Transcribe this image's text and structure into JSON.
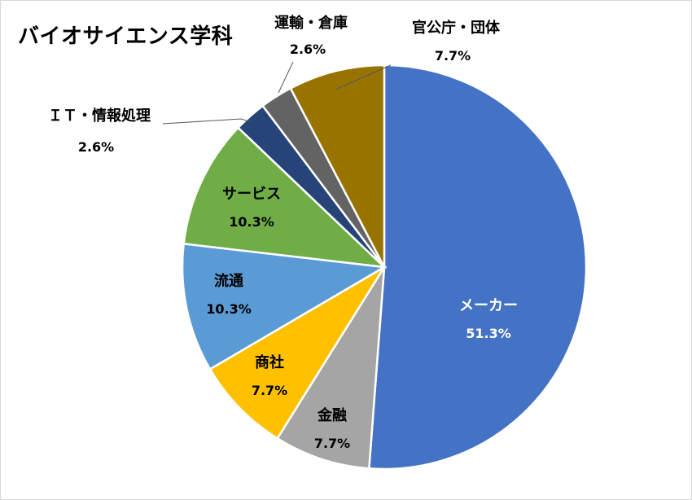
{
  "chart_data": {
    "type": "pie",
    "title": "バイオサイエンス学科",
    "start": "12 o'clock, clockwise",
    "slices": [
      {
        "label": "メーカー",
        "value": 51.3,
        "value_label": "51.3%",
        "color": "#4472c4",
        "label_color": "#ffffff"
      },
      {
        "label": "金融",
        "value": 7.7,
        "value_label": "7.7%",
        "color": "#a5a5a5",
        "label_color": "#000000"
      },
      {
        "label": "商社",
        "value": 7.7,
        "value_label": "7.7%",
        "color": "#ffc000",
        "label_color": "#000000"
      },
      {
        "label": "流通",
        "value": 10.3,
        "value_label": "10.3%",
        "color": "#5b9bd5",
        "label_color": "#000000"
      },
      {
        "label": "サービス",
        "value": 10.3,
        "value_label": "10.3%",
        "color": "#70ad47",
        "label_color": "#000000"
      },
      {
        "label": "ＩＴ・情報処理",
        "value": 2.6,
        "value_label": "2.6%",
        "color": "#264478",
        "label_color": "#000000"
      },
      {
        "label": "運輸・倉庫",
        "value": 2.6,
        "value_label": "2.6%",
        "color": "#636363",
        "label_color": "#000000"
      },
      {
        "label": "官公庁・団体",
        "value": 7.7,
        "value_label": "7.7%",
        "color": "#997300",
        "label_color": "#000000"
      }
    ]
  }
}
